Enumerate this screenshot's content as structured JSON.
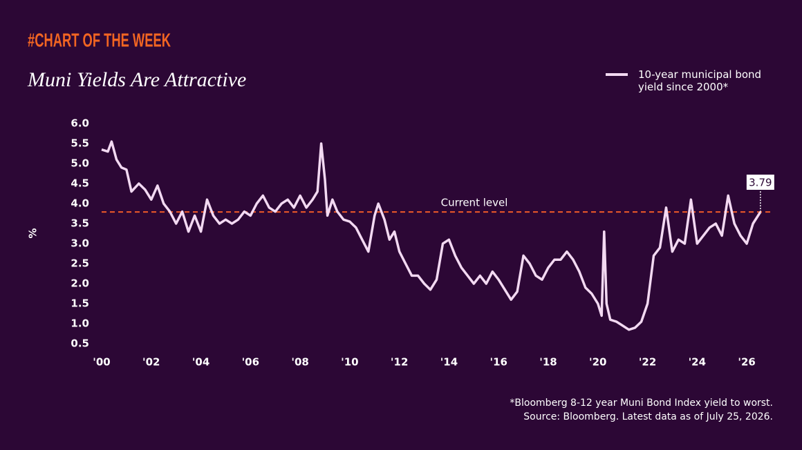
{
  "chart_data": {
    "type": "line",
    "kicker": "#CHART OF THE WEEK",
    "title": "Muni Yields Are Attractive",
    "y_label": "%",
    "notes": [
      "*Bloomberg 8-12 year Muni Bond Index yield to worst.",
      "Source: Bloomberg. Latest data as of July 25, 2026."
    ],
    "reference_line": {
      "value": 3.79,
      "label": "Current level",
      "color": "#f05a28"
    },
    "x": [
      2000.0,
      2000.25,
      2000.4,
      2000.6,
      2000.8,
      2001.0,
      2001.2,
      2001.5,
      2001.75,
      2002.0,
      2002.25,
      2002.5,
      2002.75,
      2003.0,
      2003.25,
      2003.5,
      2003.75,
      2004.0,
      2004.25,
      2004.5,
      2004.75,
      2005.0,
      2005.25,
      2005.5,
      2005.75,
      2006.0,
      2006.25,
      2006.5,
      2006.75,
      2007.0,
      2007.25,
      2007.5,
      2007.75,
      2008.0,
      2008.25,
      2008.5,
      2008.7,
      2008.85,
      2009.0,
      2009.1,
      2009.3,
      2009.5,
      2009.75,
      2010.0,
      2010.25,
      2010.5,
      2010.75,
      2011.0,
      2011.15,
      2011.4,
      2011.6,
      2011.8,
      2012.0,
      2012.25,
      2012.5,
      2012.75,
      2013.0,
      2013.25,
      2013.5,
      2013.75,
      2014.0,
      2014.25,
      2014.5,
      2014.75,
      2015.0,
      2015.25,
      2015.5,
      2015.75,
      2016.0,
      2016.25,
      2016.5,
      2016.75,
      2017.0,
      2017.25,
      2017.5,
      2017.75,
      2018.0,
      2018.25,
      2018.5,
      2018.75,
      2019.0,
      2019.25,
      2019.5,
      2019.75,
      2020.0,
      2020.15,
      2020.25,
      2020.35,
      2020.5,
      2020.75,
      2021.0,
      2021.25,
      2021.5,
      2021.75,
      2022.0,
      2022.25,
      2022.5,
      2022.75,
      2023.0,
      2023.25,
      2023.5,
      2023.75,
      2024.0,
      2024.25,
      2024.5,
      2024.75,
      2025.0,
      2025.25,
      2025.5,
      2025.75,
      2026.0,
      2026.25,
      2026.55
    ],
    "series": [
      {
        "name": "10-year municipal bond yield since 2000*",
        "color": "#f3d9f2",
        "values": [
          5.35,
          5.3,
          5.55,
          5.1,
          4.9,
          4.85,
          4.3,
          4.5,
          4.35,
          4.1,
          4.45,
          4.0,
          3.8,
          3.5,
          3.8,
          3.3,
          3.7,
          3.3,
          4.1,
          3.7,
          3.5,
          3.6,
          3.5,
          3.6,
          3.8,
          3.7,
          4.0,
          4.2,
          3.9,
          3.8,
          4.0,
          4.1,
          3.9,
          4.2,
          3.9,
          4.1,
          4.3,
          5.5,
          4.6,
          3.7,
          4.1,
          3.8,
          3.6,
          3.55,
          3.4,
          3.1,
          2.8,
          3.7,
          4.0,
          3.6,
          3.1,
          3.3,
          2.8,
          2.5,
          2.2,
          2.2,
          2.0,
          1.85,
          2.1,
          3.0,
          3.1,
          2.7,
          2.4,
          2.2,
          2.0,
          2.2,
          2.0,
          2.3,
          2.1,
          1.85,
          1.6,
          1.8,
          2.7,
          2.5,
          2.2,
          2.1,
          2.4,
          2.6,
          2.6,
          2.8,
          2.6,
          2.3,
          1.9,
          1.75,
          1.5,
          1.2,
          3.3,
          1.5,
          1.1,
          1.05,
          0.95,
          0.85,
          0.9,
          1.05,
          1.5,
          2.7,
          2.9,
          3.9,
          2.8,
          3.1,
          3.0,
          4.1,
          3.0,
          3.2,
          3.4,
          3.5,
          3.2,
          4.2,
          3.5,
          3.2,
          3.0,
          3.5,
          3.79
        ]
      }
    ],
    "xlim": [
      2000,
      2027
    ],
    "ylim": [
      0.5,
      6.0
    ],
    "xticks": [
      {
        "value": 2000,
        "label": "'00"
      },
      {
        "value": 2002,
        "label": "'02"
      },
      {
        "value": 2004,
        "label": "'04"
      },
      {
        "value": 2006,
        "label": "'06"
      },
      {
        "value": 2008,
        "label": "'08"
      },
      {
        "value": 2010,
        "label": "'10"
      },
      {
        "value": 2012,
        "label": "'12"
      },
      {
        "value": 2014,
        "label": "'14"
      },
      {
        "value": 2016,
        "label": "'16"
      },
      {
        "value": 2018,
        "label": "'18"
      },
      {
        "value": 2020,
        "label": "'20"
      },
      {
        "value": 2022,
        "label": "'22"
      },
      {
        "value": 2024,
        "label": "'24"
      },
      {
        "value": 2026,
        "label": "'26"
      }
    ],
    "yticks": [
      {
        "value": 6,
        "label": "6.0"
      },
      5.5,
      {
        "value": 5,
        "label": "5.0"
      },
      4.5,
      {
        "value": 4,
        "label": "4.0"
      },
      3.5,
      {
        "value": 3,
        "label": "3.0"
      },
      2.5,
      {
        "value": 2,
        "label": "2.0"
      },
      1.5,
      {
        "value": 1,
        "label": "1.0"
      },
      0.5
    ],
    "grid": false,
    "legend": "top-right"
  }
}
